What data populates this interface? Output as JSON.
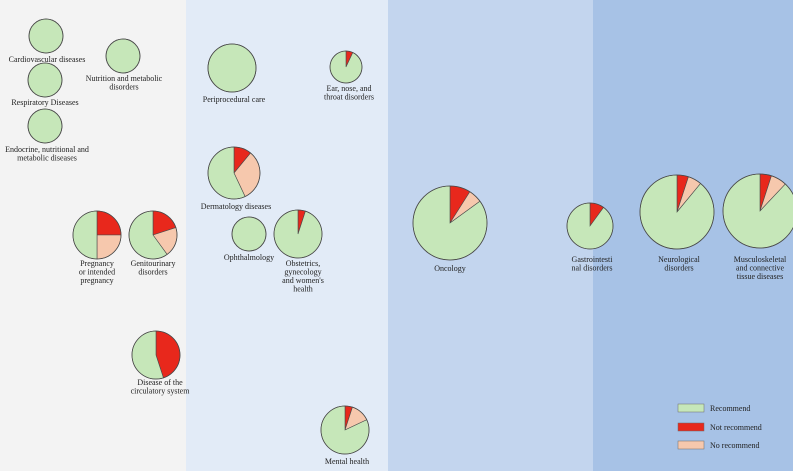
{
  "chart_data": {
    "type": "pie",
    "title": "",
    "colors": {
      "recommend": "#c6e7b9",
      "not_recommend": "#e8281c",
      "no_recommend": "#f6c8ad",
      "stroke": "#4a4a4a",
      "band_1": "#f3f3f3",
      "band_2": "#e2ebf7",
      "band_3": "#c3d5ee",
      "band_4": "#a7c2e6"
    },
    "legend": {
      "placement": "bottom-right",
      "entries": [
        {
          "key": "recommend",
          "label": "Recommend"
        },
        {
          "key": "not_recommend",
          "label": "Not recommend"
        },
        {
          "key": "no_recommend",
          "label": "No recommend"
        }
      ]
    },
    "series_order": [
      "recommend",
      "not_recommend",
      "no_recommend"
    ],
    "pies": [
      {
        "id": "cardiovascular",
        "label": [
          "Cardiovascular diseases"
        ],
        "values": {
          "recommend": 100,
          "not_recommend": 0,
          "no_recommend": 0
        }
      },
      {
        "id": "nutrition",
        "label": [
          "Nutrition and metabolic",
          "disorders"
        ],
        "values": {
          "recommend": 100,
          "not_recommend": 0,
          "no_recommend": 0
        }
      },
      {
        "id": "respiratory",
        "label": [
          "Respiratory Diseases"
        ],
        "values": {
          "recommend": 100,
          "not_recommend": 0,
          "no_recommend": 0
        }
      },
      {
        "id": "endocrine",
        "label": [
          "Endocrine, nutritional and",
          "metabolic diseases"
        ],
        "values": {
          "recommend": 100,
          "not_recommend": 0,
          "no_recommend": 0
        }
      },
      {
        "id": "pregnancy",
        "label": [
          "Pregnancy",
          "or intended",
          "pregnancy"
        ],
        "values": {
          "recommend": 50,
          "not_recommend": 25,
          "no_recommend": 25
        }
      },
      {
        "id": "genitourinary",
        "label": [
          "Genitourinary",
          "disorders"
        ],
        "values": {
          "recommend": 60,
          "not_recommend": 20,
          "no_recommend": 20
        }
      },
      {
        "id": "circulatory",
        "label": [
          "Disease of the",
          "circulatory system"
        ],
        "values": {
          "recommend": 55,
          "not_recommend": 45,
          "no_recommend": 0
        }
      },
      {
        "id": "periprocedural",
        "label": [
          "Periprocedural care"
        ],
        "values": {
          "recommend": 100,
          "not_recommend": 0,
          "no_recommend": 0
        }
      },
      {
        "id": "ent",
        "label": [
          "Ear, nose, and",
          "throat disorders"
        ],
        "values": {
          "recommend": 93,
          "not_recommend": 7,
          "no_recommend": 0
        }
      },
      {
        "id": "dermatology",
        "label": [
          "Dermatology diseases"
        ],
        "values": {
          "recommend": 57,
          "not_recommend": 11,
          "no_recommend": 32
        }
      },
      {
        "id": "ophthalmology",
        "label": [
          "Ophthalmology"
        ],
        "values": {
          "recommend": 100,
          "not_recommend": 0,
          "no_recommend": 0
        }
      },
      {
        "id": "obstetrics",
        "label": [
          "Obstetrics,",
          "gynecology",
          "and women's",
          "health"
        ],
        "values": {
          "recommend": 95,
          "not_recommend": 5,
          "no_recommend": 0
        }
      },
      {
        "id": "mental",
        "label": [
          "Mental health"
        ],
        "values": {
          "recommend": 82,
          "not_recommend": 5,
          "no_recommend": 13
        }
      },
      {
        "id": "oncology",
        "label": [
          "Oncology"
        ],
        "values": {
          "recommend": 85,
          "not_recommend": 9,
          "no_recommend": 6
        }
      },
      {
        "id": "gastro",
        "label": [
          "Gastrointesti",
          "nal disorders"
        ],
        "values": {
          "recommend": 90,
          "not_recommend": 10,
          "no_recommend": 0
        }
      },
      {
        "id": "neuro",
        "label": [
          "Neurological",
          "disorders"
        ],
        "values": {
          "recommend": 89,
          "not_recommend": 5,
          "no_recommend": 6
        }
      },
      {
        "id": "musculo",
        "label": [
          "Musculoskeletal",
          "and connective",
          "tissue diseases"
        ],
        "values": {
          "recommend": 88,
          "not_recommend": 5,
          "no_recommend": 7
        }
      }
    ]
  }
}
